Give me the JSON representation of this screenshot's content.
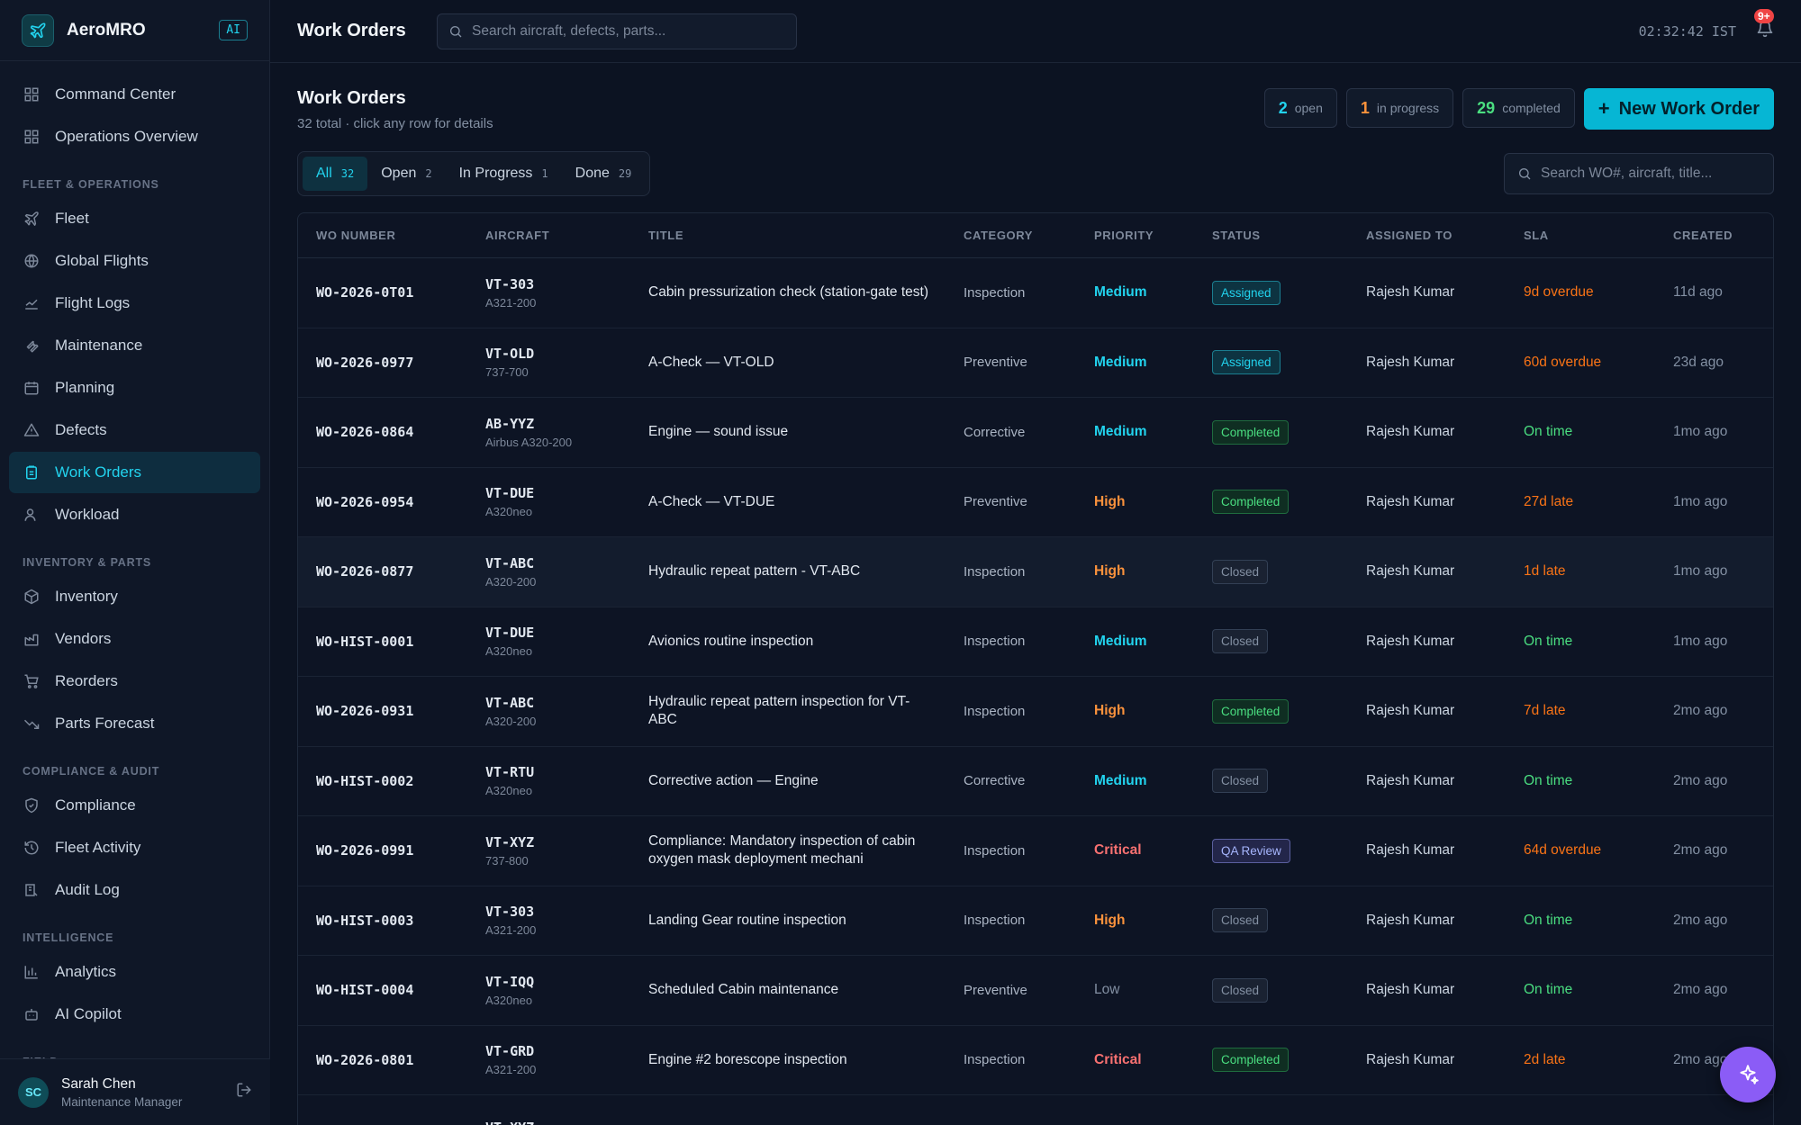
{
  "brand": {
    "name": "AeroMRO",
    "badge": "AI"
  },
  "nav": {
    "top": [
      {
        "label": "Command Center",
        "icon": "grid-icon"
      },
      {
        "label": "Operations Overview",
        "icon": "grid-icon"
      }
    ],
    "sections": [
      {
        "title": "FLEET & OPERATIONS",
        "items": [
          "Fleet",
          "Global Flights",
          "Flight Logs",
          "Maintenance",
          "Planning",
          "Defects",
          "Work Orders",
          "Workload"
        ]
      },
      {
        "title": "INVENTORY & PARTS",
        "items": [
          "Inventory",
          "Vendors",
          "Reorders",
          "Parts Forecast"
        ]
      },
      {
        "title": "COMPLIANCE & AUDIT",
        "items": [
          "Compliance",
          "Fleet Activity",
          "Audit Log"
        ]
      },
      {
        "title": "INTELLIGENCE",
        "items": [
          "Analytics",
          "AI Copilot"
        ]
      },
      {
        "title": "FIELD",
        "items": []
      }
    ]
  },
  "user": {
    "initials": "SC",
    "name": "Sarah Chen",
    "role": "Maintenance Manager"
  },
  "topbar": {
    "title": "Work Orders",
    "search_placeholder": "Search aircraft, defects, parts...",
    "clock": "02:32:42 IST",
    "notif_badge": "9+"
  },
  "page": {
    "title": "Work Orders",
    "subtitle": "32 total · click any row for details",
    "stats": [
      {
        "value": "2",
        "label": "open",
        "color": "#22d3ee"
      },
      {
        "value": "1",
        "label": "in progress",
        "color": "#fb923c"
      },
      {
        "value": "29",
        "label": "completed",
        "color": "#4ade80"
      }
    ],
    "new_button": "New Work Order",
    "tabs": [
      {
        "label": "All",
        "count": "32"
      },
      {
        "label": "Open",
        "count": "2"
      },
      {
        "label": "In Progress",
        "count": "1"
      },
      {
        "label": "Done",
        "count": "29"
      }
    ],
    "table_search_placeholder": "Search WO#, aircraft, title..."
  },
  "table": {
    "columns": [
      "WO NUMBER",
      "AIRCRAFT",
      "TITLE",
      "CATEGORY",
      "PRIORITY",
      "STATUS",
      "ASSIGNED TO",
      "SLA",
      "CREATED"
    ],
    "rows": [
      {
        "wo": "WO-2026-0T01",
        "reg": "VT-303",
        "type": "A321-200",
        "title": "Cabin pressurization check (station-gate test)",
        "category": "Inspection",
        "priority": "Medium",
        "status": "Assigned",
        "assigned": "Rajesh Kumar",
        "sla": "9d overdue",
        "created": "11d ago"
      },
      {
        "wo": "WO-2026-0977",
        "reg": "VT-OLD",
        "type": "737-700",
        "title": "A-Check — VT-OLD",
        "category": "Preventive",
        "priority": "Medium",
        "status": "Assigned",
        "assigned": "Rajesh Kumar",
        "sla": "60d overdue",
        "created": "23d ago"
      },
      {
        "wo": "WO-2026-0864",
        "reg": "AB-YYZ",
        "type": "Airbus A320-200",
        "title": "Engine — sound issue",
        "category": "Corrective",
        "priority": "Medium",
        "status": "Completed",
        "assigned": "Rajesh Kumar",
        "sla": "On time",
        "created": "1mo ago"
      },
      {
        "wo": "WO-2026-0954",
        "reg": "VT-DUE",
        "type": "A320neo",
        "title": "A-Check — VT-DUE",
        "category": "Preventive",
        "priority": "High",
        "status": "Completed",
        "assigned": "Rajesh Kumar",
        "sla": "27d late",
        "created": "1mo ago"
      },
      {
        "wo": "WO-2026-0877",
        "reg": "VT-ABC",
        "type": "A320-200",
        "title": "Hydraulic repeat pattern - VT-ABC",
        "category": "Inspection",
        "priority": "High",
        "status": "Closed",
        "assigned": "Rajesh Kumar",
        "sla": "1d late",
        "created": "1mo ago"
      },
      {
        "wo": "WO-HIST-0001",
        "reg": "VT-DUE",
        "type": "A320neo",
        "title": "Avionics routine inspection",
        "category": "Inspection",
        "priority": "Medium",
        "status": "Closed",
        "assigned": "Rajesh Kumar",
        "sla": "On time",
        "created": "1mo ago"
      },
      {
        "wo": "WO-2026-0931",
        "reg": "VT-ABC",
        "type": "A320-200",
        "title": "Hydraulic repeat pattern inspection for VT-ABC",
        "category": "Inspection",
        "priority": "High",
        "status": "Completed",
        "assigned": "Rajesh Kumar",
        "sla": "7d late",
        "created": "2mo ago"
      },
      {
        "wo": "WO-HIST-0002",
        "reg": "VT-RTU",
        "type": "A320neo",
        "title": "Corrective action — Engine",
        "category": "Corrective",
        "priority": "Medium",
        "status": "Closed",
        "assigned": "Rajesh Kumar",
        "sla": "On time",
        "created": "2mo ago"
      },
      {
        "wo": "WO-2026-0991",
        "reg": "VT-XYZ",
        "type": "737-800",
        "title": "Compliance: Mandatory inspection of cabin oxygen mask deployment mechani",
        "category": "Inspection",
        "priority": "Critical",
        "status": "QA Review",
        "assigned": "Rajesh Kumar",
        "sla": "64d overdue",
        "created": "2mo ago"
      },
      {
        "wo": "WO-HIST-0003",
        "reg": "VT-303",
        "type": "A321-200",
        "title": "Landing Gear routine inspection",
        "category": "Inspection",
        "priority": "High",
        "status": "Closed",
        "assigned": "Rajesh Kumar",
        "sla": "On time",
        "created": "2mo ago"
      },
      {
        "wo": "WO-HIST-0004",
        "reg": "VT-IQQ",
        "type": "A320neo",
        "title": "Scheduled Cabin maintenance",
        "category": "Preventive",
        "priority": "Low",
        "status": "Closed",
        "assigned": "Rajesh Kumar",
        "sla": "On time",
        "created": "2mo ago"
      },
      {
        "wo": "WO-2026-0801",
        "reg": "VT-GRD",
        "type": "A321-200",
        "title": "Engine #2 borescope inspection",
        "category": "Inspection",
        "priority": "Critical",
        "status": "Completed",
        "assigned": "Rajesh Kumar",
        "sla": "2d late",
        "created": "2mo ago"
      },
      {
        "wo": "",
        "reg": "VT-XYZ",
        "type": "",
        "title": "",
        "category": "",
        "priority": "",
        "status": "",
        "assigned": "",
        "sla": "",
        "created": ""
      }
    ]
  },
  "fab": {
    "icon": "sparkle-icon"
  },
  "colors": {
    "accent": "#22d3ee",
    "background": "#0c1322",
    "sidebar": "#0f1727",
    "fab": "#8b5cf6"
  }
}
